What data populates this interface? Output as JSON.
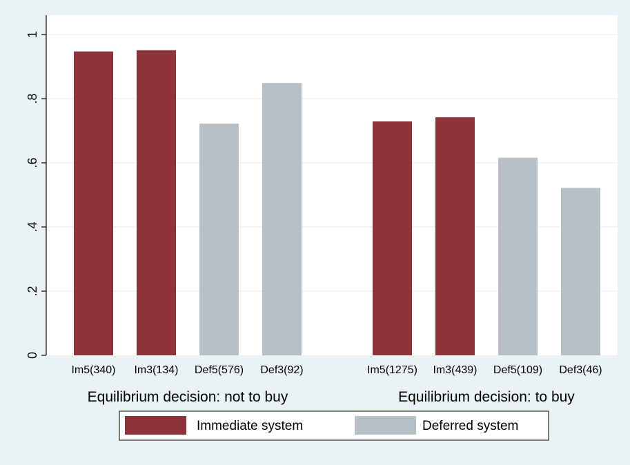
{
  "colors": {
    "background": "#eaf2f3",
    "plot_background": "#ffffff",
    "immediate": "#8e333a",
    "deferred": "#b7c1c5",
    "grid": "#e9eef0",
    "axis": "#000000"
  },
  "legend": {
    "items": [
      {
        "label": "Immediate system",
        "color_key": "immediate"
      },
      {
        "label": "Deferred system",
        "color_key": "deferred"
      }
    ]
  },
  "chart_data": {
    "type": "bar",
    "title": "",
    "xlabel": "",
    "ylabel": "",
    "ylim": [
      0,
      1
    ],
    "yticks": [
      0,
      0.2,
      0.4,
      0.6,
      0.8,
      1
    ],
    "ytick_labels": [
      "0",
      ".2",
      ".4",
      ".6",
      ".8",
      "1"
    ],
    "grid": true,
    "legend_position": "bottom",
    "groups": [
      {
        "label": "Equilibrium decision: not to buy",
        "bars": [
          {
            "category": "Im5(340)",
            "series": "Immediate system",
            "value": 0.947
          },
          {
            "category": "Im3(134)",
            "series": "Immediate system",
            "value": 0.951
          },
          {
            "category": "Def5(576)",
            "series": "Deferred system",
            "value": 0.722
          },
          {
            "category": "Def3(92)",
            "series": "Deferred system",
            "value": 0.849
          }
        ]
      },
      {
        "label": "Equilibrium decision: to buy",
        "bars": [
          {
            "category": "Im5(1275)",
            "series": "Immediate system",
            "value": 0.729
          },
          {
            "category": "Im3(439)",
            "series": "Immediate system",
            "value": 0.742
          },
          {
            "category": "Def5(109)",
            "series": "Deferred system",
            "value": 0.616
          },
          {
            "category": "Def3(46)",
            "series": "Deferred system",
            "value": 0.522
          }
        ]
      }
    ]
  }
}
